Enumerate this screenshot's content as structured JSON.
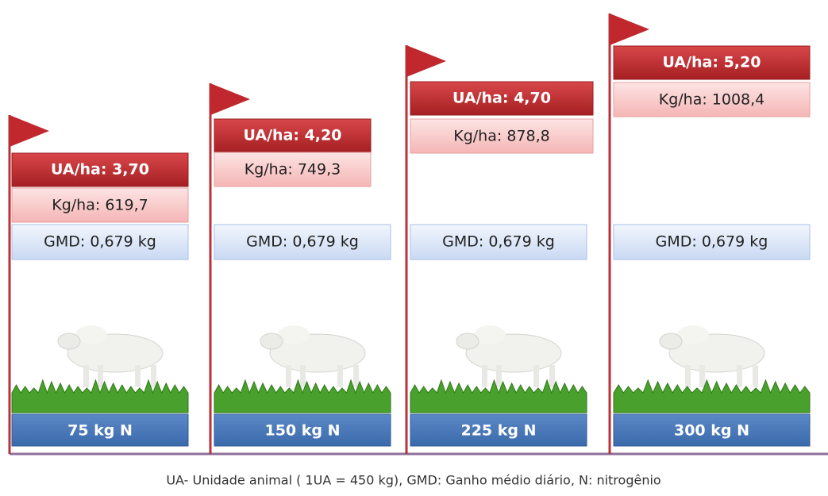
{
  "columns": [
    {
      "ua": "UA/ha:  3,70",
      "kg": "Kg/ha:  619,7",
      "gmd": "GMD: 0,679 kg",
      "n": "75 kg N"
    },
    {
      "ua": "UA/ha:  4,20",
      "kg": "Kg/ha:  749,3",
      "gmd": "GMD: 0,679 kg",
      "n": "150 kg N"
    },
    {
      "ua": "UA/ha:  4,70",
      "kg": "Kg/ha:  878,8",
      "gmd": "GMD: 0,679 kg",
      "n": "225 kg N"
    },
    {
      "ua": "UA/ha: 5,20",
      "kg": "Kg/ha:  1008,4",
      "gmd": "GMD: 0,679 kg",
      "n": "300 kg N"
    }
  ],
  "footer": "UA- Unidade animal  ( 1UA = 450 kg), GMD: Ganho médio diário, N: nitrogênio"
}
